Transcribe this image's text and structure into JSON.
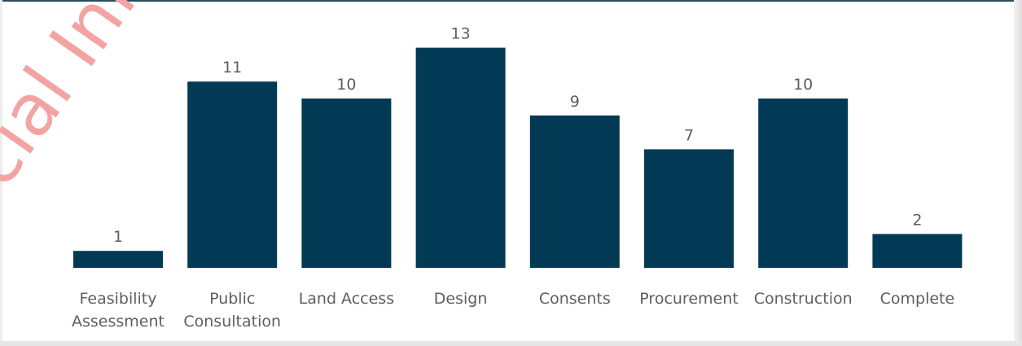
{
  "chart_data": {
    "type": "bar",
    "categories": [
      "Feasibility Assessment",
      "Public Consultation",
      "Land Access",
      "Design",
      "Consents",
      "Procurement",
      "Construction",
      "Complete"
    ],
    "category_lines": [
      [
        "Feasibility",
        "Assessment"
      ],
      [
        "Public",
        "Consultation"
      ],
      [
        "Land Access"
      ],
      [
        "Design"
      ],
      [
        "Consents"
      ],
      [
        "Procurement"
      ],
      [
        "Construction"
      ],
      [
        "Complete"
      ]
    ],
    "values": [
      1,
      11,
      10,
      13,
      9,
      7,
      10,
      2
    ],
    "title": "",
    "xlabel": "",
    "ylabel": "",
    "ylim": [
      0,
      13
    ],
    "grid": false,
    "data_labels": true,
    "bar_color": "#023a55",
    "label_color": "#605e5c"
  },
  "watermark": {
    "text": "cial Info",
    "color": "#f4a3a3"
  }
}
